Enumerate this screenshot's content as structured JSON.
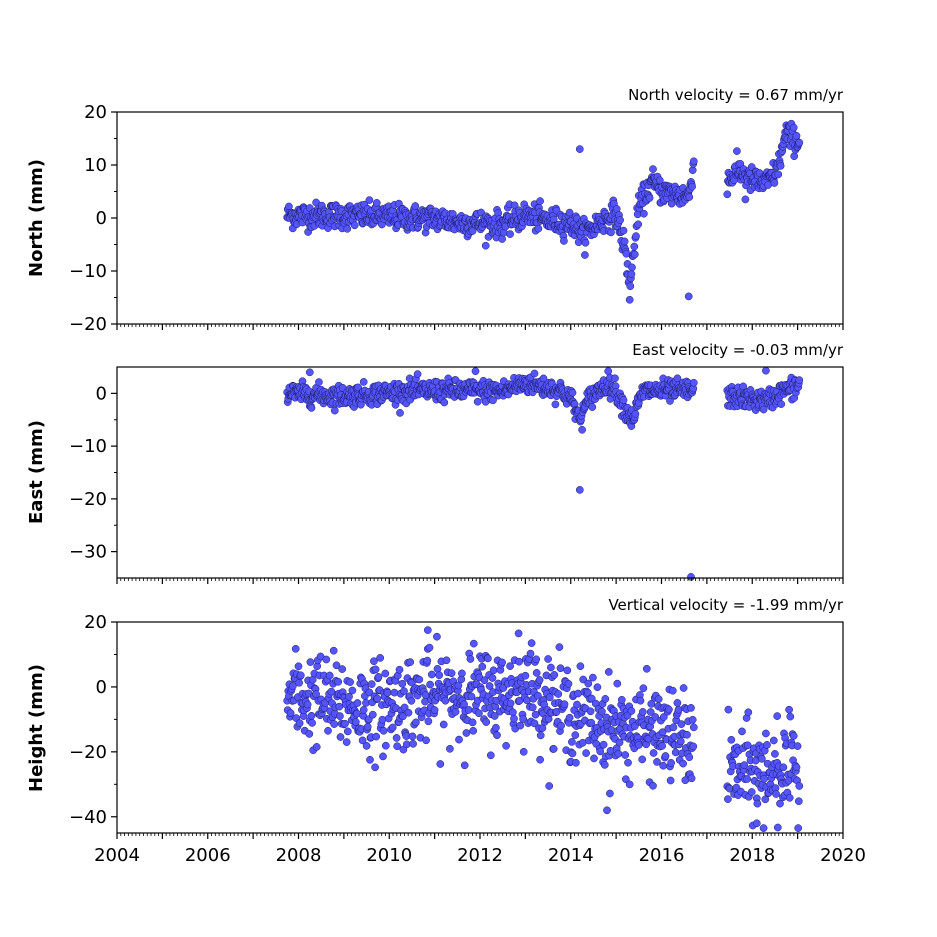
{
  "chart_data": [
    {
      "type": "scatter",
      "title": "North velocity = 0.67 mm/yr",
      "ylabel": "North (mm)",
      "xlim": [
        2004,
        2020
      ],
      "ylim": [
        -20,
        20
      ],
      "yticks": [
        20,
        10,
        0,
        -10,
        -20
      ],
      "ytick_labels": [
        "20",
        "10",
        "0",
        "−10",
        "−20"
      ],
      "color": "#5555ff",
      "edge_color": "#1a1a66",
      "outliers": [
        [
          2014.2,
          13
        ],
        [
          2016.6,
          -14.8
        ],
        [
          2017.85,
          3.5
        ]
      ],
      "series": [
        {
          "trend": [
            [
              2007.75,
              0.5
            ],
            [
              2008.5,
              0.5
            ],
            [
              2009.5,
              0.4
            ],
            [
              2010.5,
              0
            ],
            [
              2011,
              0
            ],
            [
              2011.5,
              -0.8
            ],
            [
              2012.5,
              -1.2
            ],
            [
              2013.0,
              0.5
            ],
            [
              2013.5,
              -0.5
            ],
            [
              2014.0,
              -1.0
            ],
            [
              2014.3,
              -3.0
            ],
            [
              2014.6,
              -1.0
            ],
            [
              2015.0,
              1.0
            ],
            [
              2015.2,
              -6.0
            ],
            [
              2015.3,
              -13.5
            ],
            [
              2015.5,
              2.0
            ],
            [
              2015.8,
              7.0
            ],
            [
              2016.0,
              5.0
            ],
            [
              2016.3,
              4.5
            ],
            [
              2016.6,
              4.0
            ],
            [
              2016.72,
              11.0
            ],
            [
              2017.45,
              7.0
            ],
            [
              2017.7,
              9.0
            ],
            [
              2018.0,
              7.0
            ],
            [
              2018.3,
              6.5
            ],
            [
              2018.55,
              9.0
            ],
            [
              2018.75,
              16.0
            ],
            [
              2019.05,
              14.0
            ]
          ],
          "scatter": 1.2
        }
      ]
    },
    {
      "type": "scatter",
      "title": "East velocity = -0.03 mm/yr",
      "ylabel": "East (mm)",
      "xlim": [
        2004,
        2020
      ],
      "ylim": [
        -35,
        5
      ],
      "yticks": [
        0,
        -10,
        -20,
        -30
      ],
      "ytick_labels": [
        "0",
        "−10",
        "−20",
        "−30"
      ],
      "color": "#5555ff",
      "edge_color": "#1a1a66",
      "outliers": [
        [
          2014.2,
          -18.3
        ],
        [
          2016.65,
          -34.8
        ],
        [
          2018.3,
          4.3
        ],
        [
          2008.25,
          4.0
        ],
        [
          2011.9,
          4.2
        ]
      ],
      "series": [
        {
          "trend": [
            [
              2007.75,
              0
            ],
            [
              2009.0,
              -0.5
            ],
            [
              2010.5,
              0.5
            ],
            [
              2012.5,
              0.5
            ],
            [
              2013.0,
              2.0
            ],
            [
              2013.8,
              0.5
            ],
            [
              2014.0,
              -1.0
            ],
            [
              2014.2,
              -5.0
            ],
            [
              2014.4,
              -1.0
            ],
            [
              2014.8,
              2.0
            ],
            [
              2015.0,
              0.5
            ],
            [
              2015.2,
              -3.0
            ],
            [
              2015.35,
              -5.0
            ],
            [
              2015.6,
              0.5
            ],
            [
              2016.0,
              0.5
            ],
            [
              2016.72,
              0.5
            ],
            [
              2017.45,
              -0.5
            ],
            [
              2018.3,
              -1.5
            ],
            [
              2018.7,
              0.5
            ],
            [
              2019.05,
              1.5
            ]
          ],
          "scatter": 1.0
        }
      ]
    },
    {
      "type": "scatter",
      "title": "Vertical velocity = -1.99 mm/yr",
      "ylabel": "Height (mm)",
      "xlabel": "",
      "xlim": [
        2004,
        2020
      ],
      "ylim": [
        -45,
        20
      ],
      "yticks": [
        20,
        0,
        -20,
        -40
      ],
      "ytick_labels": [
        "20",
        "0",
        "−20",
        "−40"
      ],
      "xticks": [
        2004,
        2006,
        2008,
        2010,
        2012,
        2014,
        2016,
        2018,
        2020
      ],
      "xtick_labels": [
        "2004",
        "2006",
        "2008",
        "2010",
        "2012",
        "2014",
        "2016",
        "2018",
        "2020"
      ],
      "color": "#5555ff",
      "edge_color": "#1a1a66",
      "outliers": [
        [
          2010.85,
          17.5
        ],
        [
          2012.85,
          16.5
        ],
        [
          2014.8,
          -38
        ],
        [
          2018.25,
          -43.5
        ],
        [
          2018.1,
          -42
        ],
        [
          2018.55,
          -9
        ]
      ],
      "series": [
        {
          "trend": [
            [
              2007.75,
              -3
            ],
            [
              2008.5,
              -4
            ],
            [
              2009.5,
              -7
            ],
            [
              2010.5,
              -4
            ],
            [
              2011.5,
              -2
            ],
            [
              2012.5,
              -3
            ],
            [
              2013.0,
              0
            ],
            [
              2014.0,
              -8
            ],
            [
              2015.0,
              -13
            ],
            [
              2016.0,
              -14
            ],
            [
              2016.72,
              -17
            ],
            [
              2017.45,
              -26
            ],
            [
              2019.05,
              -26
            ]
          ],
          "scatter": 7.0
        }
      ]
    }
  ]
}
